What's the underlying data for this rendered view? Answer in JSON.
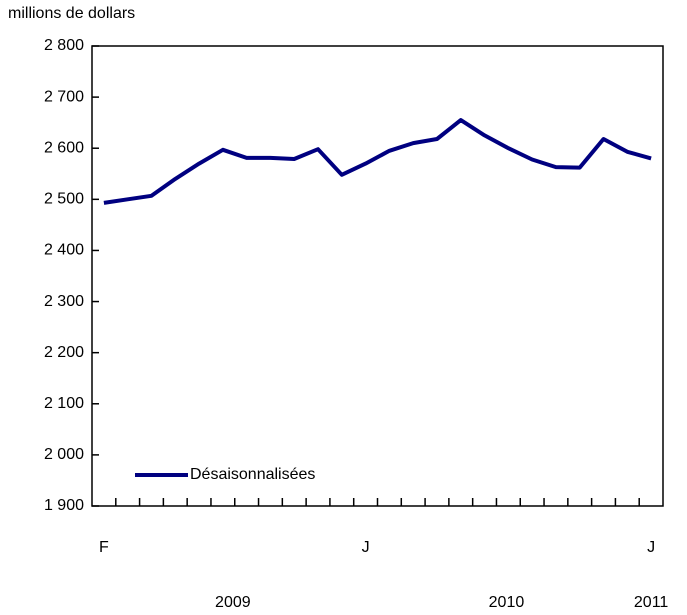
{
  "chart_data": {
    "type": "line",
    "y_axis_label": "millions de dollars",
    "categories": [
      "F",
      null,
      null,
      null,
      null,
      null,
      null,
      null,
      null,
      null,
      null,
      "J",
      null,
      null,
      null,
      null,
      null,
      null,
      null,
      null,
      null,
      null,
      null,
      "J"
    ],
    "year_labels": [
      "2009",
      "2010",
      "2011"
    ],
    "series": [
      {
        "name": "Désaisonnalisées",
        "color": "#000080",
        "values": [
          2493,
          2500,
          2507,
          2540,
          2570,
          2597,
          2581,
          2581,
          2579,
          2598,
          2548,
          2570,
          2595,
          2610,
          2618,
          2655,
          2625,
          2600,
          2578,
          2563,
          2562,
          2618,
          2593,
          2580
        ]
      }
    ],
    "ylim": [
      1900,
      2800
    ],
    "yticks": [
      {
        "value": 1900,
        "label": "1 900"
      },
      {
        "value": 2000,
        "label": "2 000"
      },
      {
        "value": 2100,
        "label": "2 100"
      },
      {
        "value": 2200,
        "label": "2 200"
      },
      {
        "value": 2300,
        "label": "2 300"
      },
      {
        "value": 2400,
        "label": "2 400"
      },
      {
        "value": 2500,
        "label": "2 500"
      },
      {
        "value": 2600,
        "label": "2 600"
      },
      {
        "value": 2700,
        "label": "2 700"
      },
      {
        "value": 2800,
        "label": "2 800"
      }
    ],
    "grid": false,
    "legend": "lower left"
  }
}
